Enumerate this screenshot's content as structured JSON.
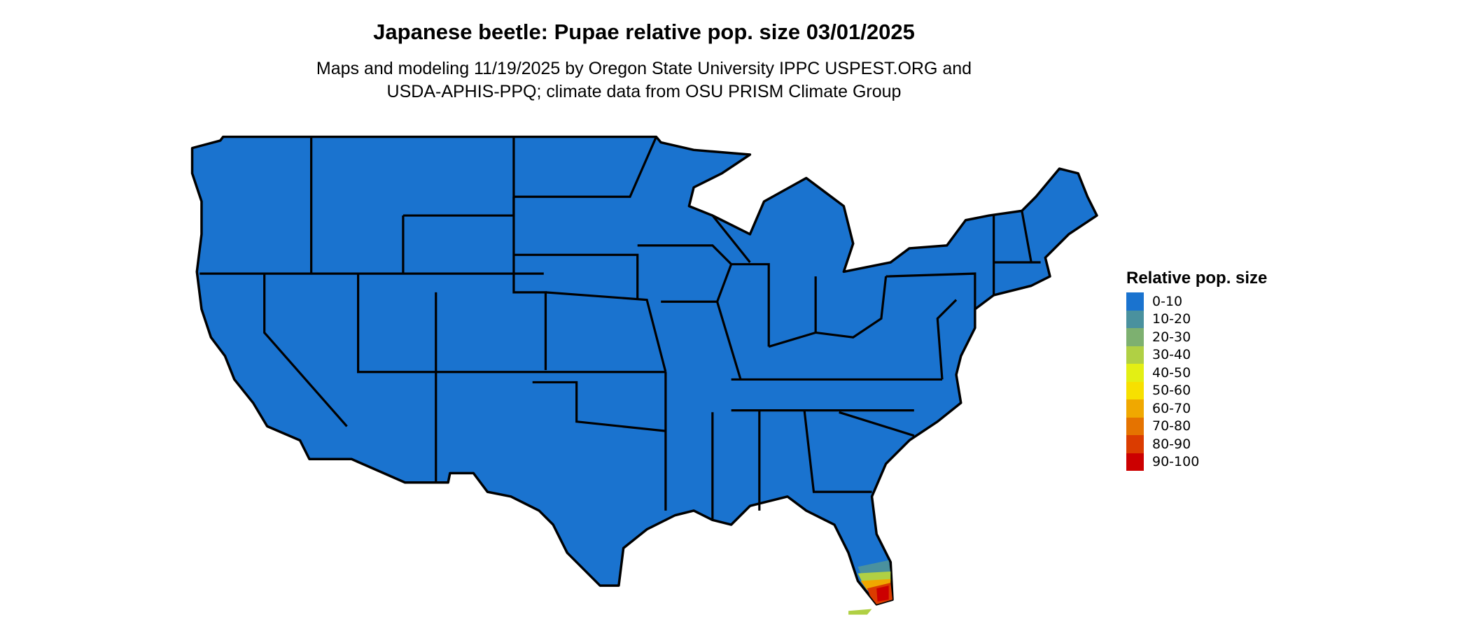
{
  "header": {
    "title": "Japanese beetle: Pupae relative pop. size 03/01/2025",
    "subtitle_line1": "Maps and modeling 11/19/2025 by Oregon State University IPPC USPEST.ORG and",
    "subtitle_line2": "USDA-APHIS-PPQ; climate data from OSU PRISM Climate Group"
  },
  "map": {
    "region": "Contiguous United States",
    "base_fill": "#1a73cf",
    "border_color": "#000000"
  },
  "legend": {
    "title": "Relative pop. size",
    "items": [
      {
        "label": "0-10",
        "color": "#1a73cf"
      },
      {
        "label": "10-20",
        "color": "#4a919e"
      },
      {
        "label": "20-30",
        "color": "#7db070"
      },
      {
        "label": "30-40",
        "color": "#b0d044"
      },
      {
        "label": "40-50",
        "color": "#e3ef14"
      },
      {
        "label": "50-60",
        "color": "#f7e000"
      },
      {
        "label": "60-70",
        "color": "#f0a800"
      },
      {
        "label": "70-80",
        "color": "#e57300"
      },
      {
        "label": "80-90",
        "color": "#db3c00"
      },
      {
        "label": "90-100",
        "color": "#cc0000"
      }
    ]
  }
}
